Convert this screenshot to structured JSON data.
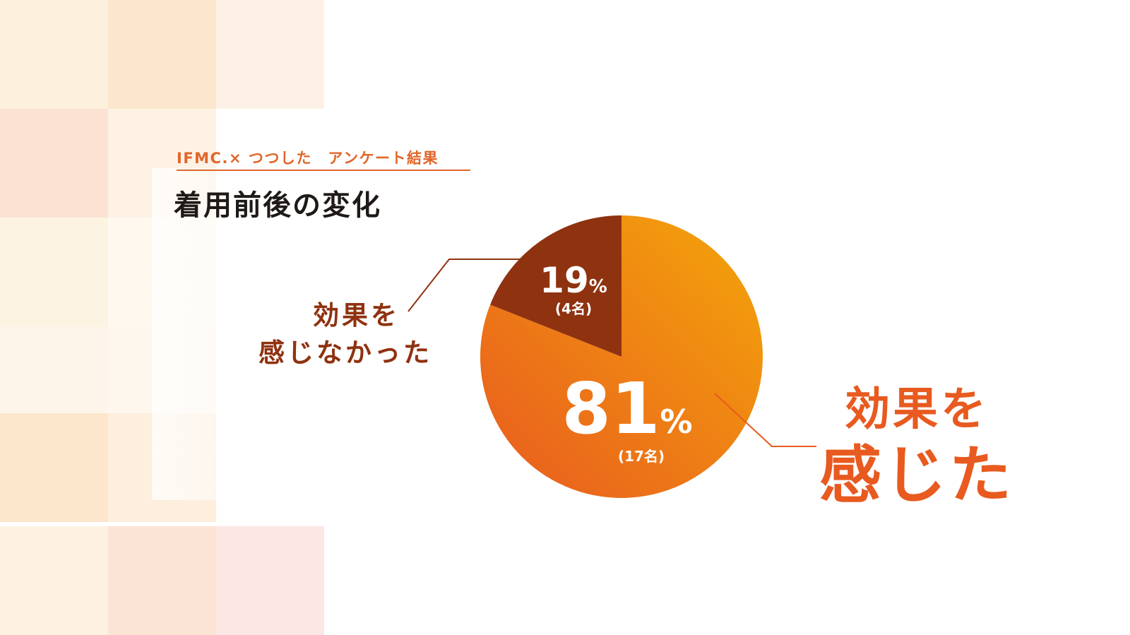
{
  "header": {
    "subtitle": "IFMC.× つつした　アンケート結果",
    "title": "着用前後の変化"
  },
  "chart_data": {
    "type": "pie",
    "title": "着用前後の変化",
    "slices": [
      {
        "label": "効果を感じた",
        "percent": 81,
        "count_label": "(17名)",
        "value_text": "81",
        "unit": "%",
        "color": "#e85a1f",
        "color_end": "#f4a60a"
      },
      {
        "label": "効果を感じなかった",
        "percent": 19,
        "count_label": "(4名)",
        "value_text": "19",
        "unit": "%",
        "color": "#8f3210"
      }
    ]
  },
  "labels": {
    "felt_line1": "効果を",
    "felt_line2": "感じた",
    "not_felt_line1": "効果を",
    "not_felt_line2": "感じなかった"
  },
  "colors": {
    "accent": "#e0662a",
    "title": "#1f1a17",
    "dark_slice": "#8f3210",
    "orange_start": "#e85a1f",
    "orange_end": "#f4a60a"
  }
}
